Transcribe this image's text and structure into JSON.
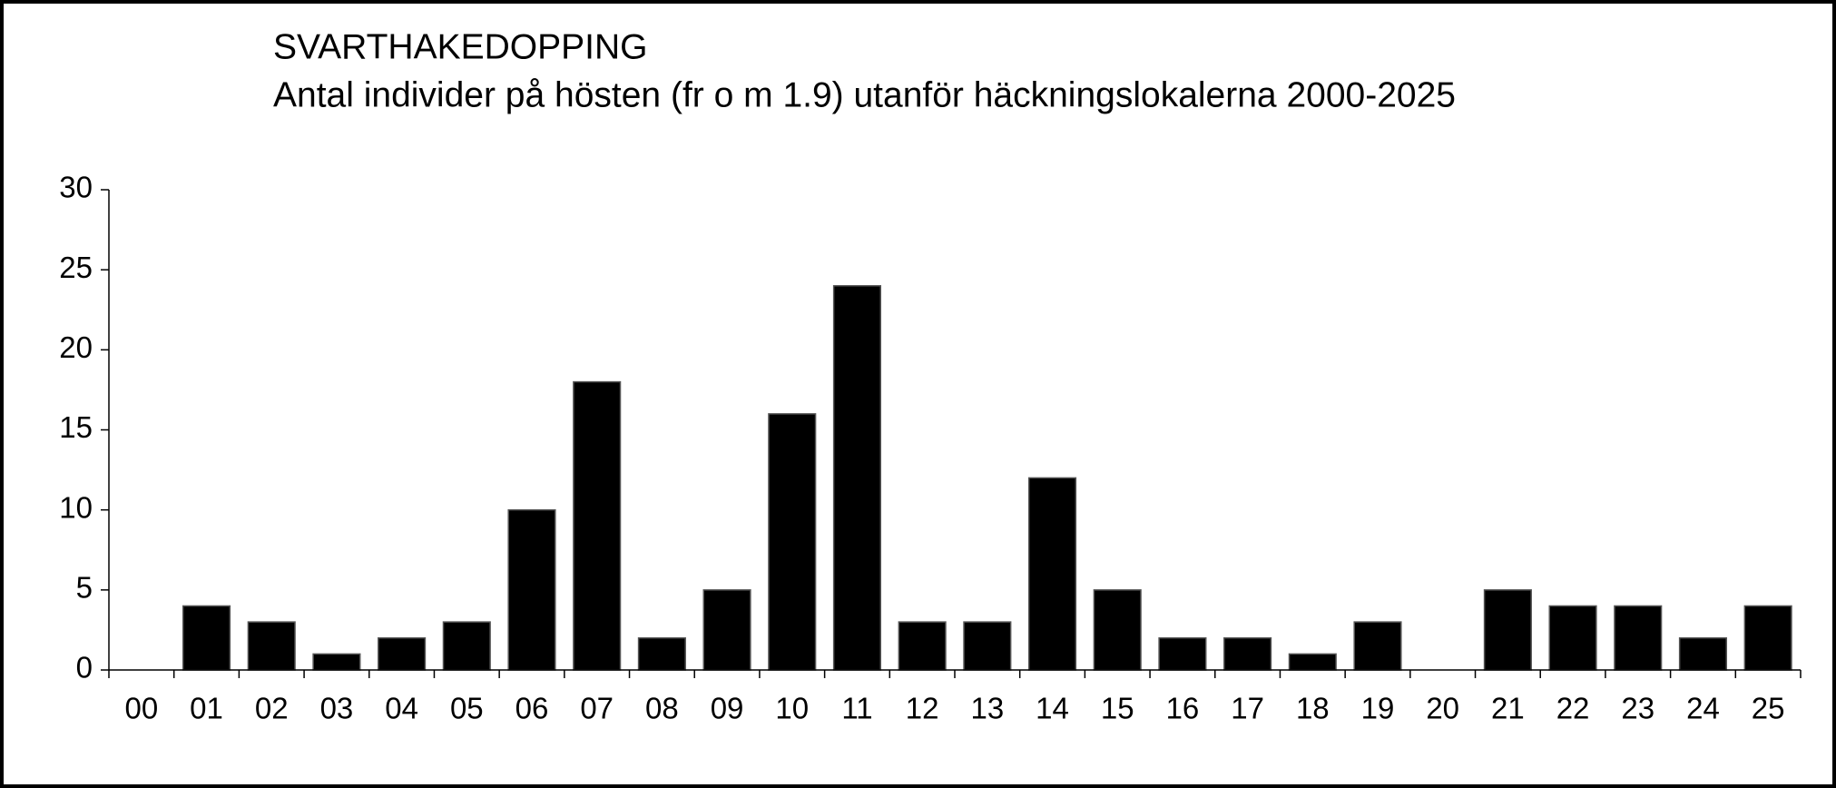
{
  "chart_data": {
    "type": "bar",
    "title": "SVARTHAKEDOPPING",
    "subtitle": "Antal individer på hösten (fr o m 1.9) utanför häckningslokalerna 2000-2025",
    "categories": [
      "00",
      "01",
      "02",
      "03",
      "04",
      "05",
      "06",
      "07",
      "08",
      "09",
      "10",
      "11",
      "12",
      "13",
      "14",
      "15",
      "16",
      "17",
      "18",
      "19",
      "20",
      "21",
      "22",
      "23",
      "24",
      "25"
    ],
    "values": [
      0,
      4,
      3,
      1,
      2,
      3,
      10,
      18,
      2,
      5,
      16,
      24,
      3,
      3,
      12,
      5,
      2,
      2,
      1,
      3,
      0,
      5,
      4,
      4,
      2,
      4
    ],
    "color": "#000000",
    "ylim": [
      0,
      30
    ],
    "yticks": [
      0,
      5,
      10,
      15,
      20,
      25,
      30
    ],
    "grid": false
  }
}
